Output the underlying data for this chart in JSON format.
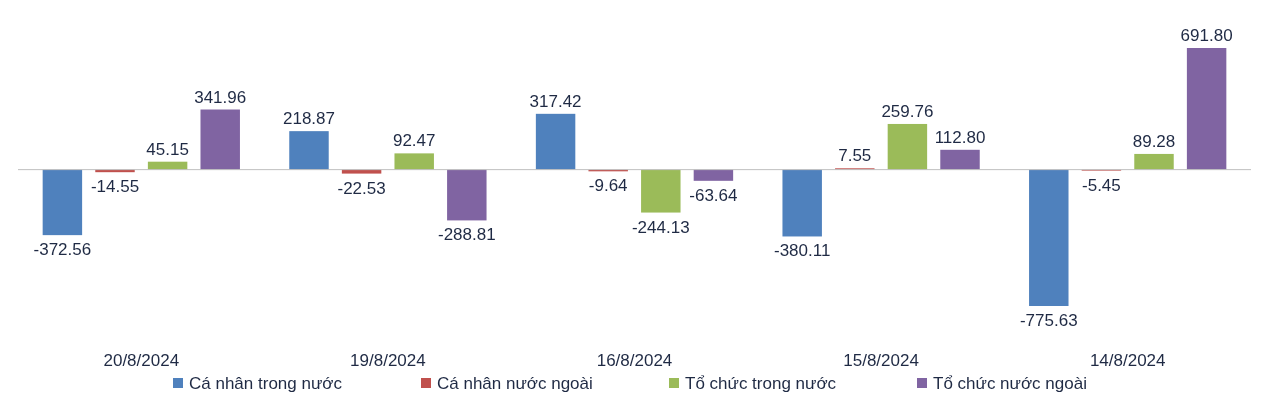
{
  "chart_data": {
    "type": "bar",
    "categories": [
      "20/8/2024",
      "19/8/2024",
      "16/8/2024",
      "15/8/2024",
      "14/8/2024"
    ],
    "series": [
      {
        "name": "Cá nhân trong nước",
        "color": "#4f81bd",
        "values": [
          -372.56,
          218.87,
          317.42,
          -380.11,
          -775.63
        ]
      },
      {
        "name": "Cá nhân nước ngoài",
        "color": "#c0504d",
        "values": [
          -14.55,
          -22.53,
          -9.64,
          7.55,
          -5.45
        ]
      },
      {
        "name": "Tổ chức trong nước",
        "color": "#9bbb59",
        "values": [
          45.15,
          92.47,
          -244.13,
          259.76,
          89.28
        ]
      },
      {
        "name": "Tổ chức nước ngoài",
        "color": "#8064a2",
        "values": [
          341.96,
          -288.81,
          -63.64,
          112.8,
          691.8
        ],
        "value_labels": [
          "341.96",
          "-288.81",
          "-63.64",
          "112.80",
          "691.80"
        ]
      }
    ],
    "data_labels": true,
    "legend": "bottom"
  }
}
